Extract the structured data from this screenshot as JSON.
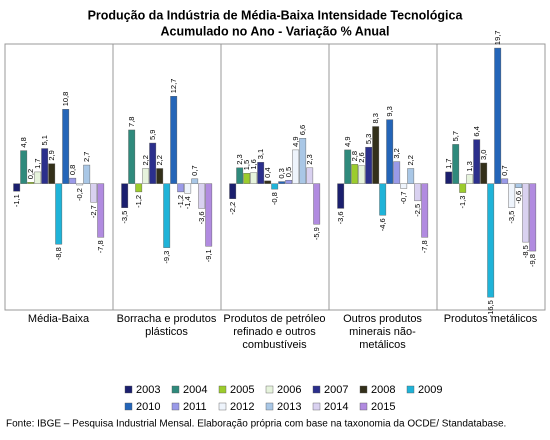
{
  "chart_data": {
    "type": "bar",
    "title": "Produção da Indústria de Média-Baixa Intensidade Tecnológica",
    "subtitle": "Acumulado no Ano - Variação % Anual",
    "categories": [
      "Média-Baixa",
      "Borracha e produtos plásticos",
      "Produtos de petróleo refinado e outros combustíveis",
      "Outros produtos minerais não-metálicos",
      "Produtos metálicos"
    ],
    "ylim": [
      -17.2,
      20
    ],
    "legend": "bottom",
    "series": [
      {
        "name": "2003",
        "color": "#1b1f6e",
        "values": [
          -1.1,
          -3.5,
          -2.2,
          -3.6,
          1.7
        ],
        "value_labels": [
          "-1,1",
          "-3,5",
          "-2,2",
          "-3,6",
          "1,7"
        ]
      },
      {
        "name": "2004",
        "color": "#2f8a7c",
        "values": [
          4.8,
          7.8,
          2.3,
          4.9,
          5.7
        ],
        "value_labels": [
          "4,8",
          "7,8",
          "2,3",
          "4,9",
          "5,7"
        ]
      },
      {
        "name": "2005",
        "color": "#9ccc2c",
        "values": [
          0.2,
          -1.2,
          1.5,
          2.8,
          -1.3
        ],
        "value_labels": [
          "0,2",
          "-1,2",
          "1,5",
          "2,8",
          "-1,3"
        ]
      },
      {
        "name": "2006",
        "color": "#e6f3dc",
        "values": [
          1.7,
          2.2,
          1.6,
          2.6,
          1.3
        ],
        "value_labels": [
          "1,7",
          "2,2",
          "1,6",
          "2,6",
          "1,3"
        ]
      },
      {
        "name": "2007",
        "color": "#2b2f8c",
        "values": [
          5.1,
          5.9,
          3.1,
          5.3,
          6.4
        ],
        "value_labels": [
          "5,1",
          "5,9",
          "3,1",
          "5,3",
          "6,4"
        ]
      },
      {
        "name": "2008",
        "color": "#33301a",
        "values": [
          2.9,
          2.2,
          0.4,
          8.3,
          3.0
        ],
        "value_labels": [
          "2,9",
          "2,2",
          "0,4",
          "8,3",
          "3,0"
        ]
      },
      {
        "name": "2009",
        "color": "#1fb3d8",
        "values": [
          -8.8,
          -9.3,
          -0.8,
          -4.6,
          -16.5
        ],
        "value_labels": [
          "-8,8",
          "-9,3",
          "-0,8",
          "-4,6",
          "-16,5"
        ]
      },
      {
        "name": "2010",
        "color": "#2465b8",
        "values": [
          10.8,
          12.7,
          0.3,
          9.3,
          19.7
        ],
        "value_labels": [
          "10,8",
          "12,7",
          "0,3",
          "9,3",
          "19,7"
        ]
      },
      {
        "name": "2011",
        "color": "#9a9ae8",
        "values": [
          0.8,
          -1.2,
          0.5,
          3.2,
          0.7
        ],
        "value_labels": [
          "0,8",
          "-1,2",
          "0,5",
          "3,2",
          "0,7"
        ]
      },
      {
        "name": "2012",
        "color": "#eef4fc",
        "values": [
          -0.2,
          -1.4,
          4.9,
          -0.7,
          -3.5
        ],
        "value_labels": [
          "-0,2",
          "-1,4",
          "4,9",
          "-0,7",
          "-3,5"
        ]
      },
      {
        "name": "2013",
        "color": "#a9c7e6",
        "values": [
          2.7,
          0.7,
          6.6,
          2.2,
          -0.6
        ],
        "value_labels": [
          "2,7",
          "0,7",
          "6,6",
          "2,2",
          "-0,6"
        ]
      },
      {
        "name": "2014",
        "color": "#d9d1f0",
        "values": [
          -2.7,
          -3.6,
          2.3,
          -2.5,
          -8.5
        ],
        "value_labels": [
          "-2,7",
          "-3,6",
          "2,3",
          "-2,5",
          "-8,5"
        ]
      },
      {
        "name": "2015",
        "color": "#b18be0",
        "values": [
          -7.8,
          -9.1,
          -5.9,
          -7.8,
          -9.8
        ],
        "value_labels": [
          "-7,8",
          "-9,1",
          "-5,9",
          "-7,8",
          "-9,8"
        ]
      }
    ],
    "source": "Fonte: IBGE – Pesquisa Industrial Mensal. Elaboração própria com base na taxonomia da OCDE/ Standatabase."
  }
}
